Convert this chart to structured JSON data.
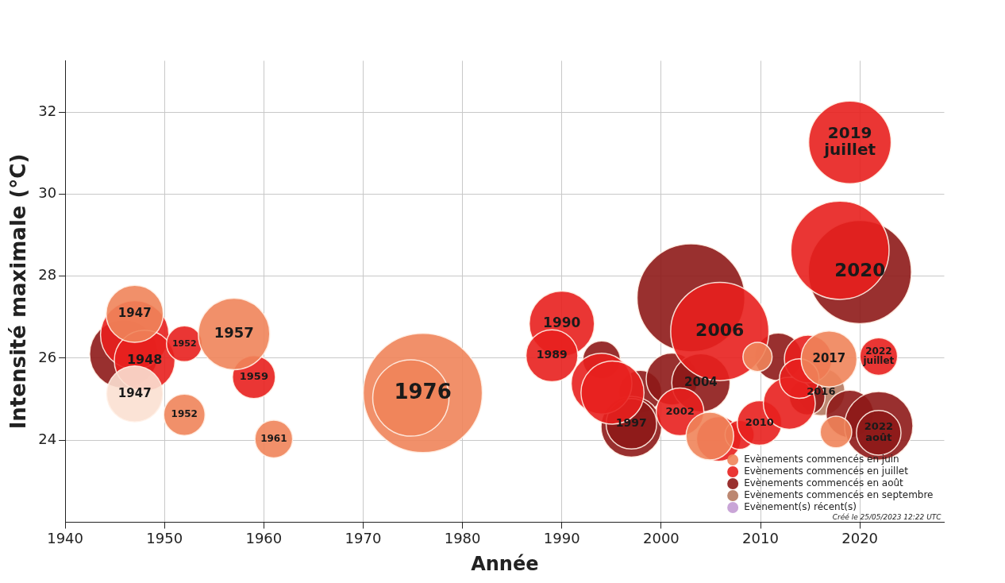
{
  "chart_data": {
    "type": "bubble",
    "xlabel": "Année",
    "ylabel": "Intensité maximale (°C)",
    "xlim": [
      1940,
      2028.5
    ],
    "xticks": [
      1940,
      1950,
      1960,
      1970,
      1980,
      1990,
      2000,
      2010,
      2020
    ],
    "ylim": [
      22,
      33.25
    ],
    "yticks": [
      24,
      26,
      28,
      30,
      32
    ],
    "grid": true,
    "legend": "bottom right",
    "annotations": [
      "Créé le 25/05/2023 12:22 UTC",
      {
        "text": "1947",
        "x": 1947,
        "y": 25.13
      },
      {
        "text": "1947",
        "x": 1947,
        "y": 27.08
      },
      {
        "text": "1957",
        "x": 1957,
        "y": 26.59
      },
      {
        "text": "1952",
        "x": 1952,
        "y": 24.62
      },
      {
        "text": "1961",
        "x": 1961,
        "y": 24.03
      },
      {
        "text": "1976",
        "x": 1976,
        "y": 25.15
      },
      {
        "text": "2017",
        "x": 2016.9,
        "y": 25.98
      },
      {
        "text": "1948",
        "x": 1948,
        "y": 25.94
      },
      {
        "text": "1952",
        "x": 1952,
        "y": 26.35
      },
      {
        "text": "1959",
        "x": 1959,
        "y": 25.54
      },
      {
        "text": "1990",
        "x": 1990,
        "y": 26.84
      },
      {
        "text": "1989",
        "x": 1989,
        "y": 26.06
      },
      {
        "text": "2002",
        "x": 2001.9,
        "y": 24.69
      },
      {
        "text": "2006",
        "x": 2005.9,
        "y": 26.65
      },
      {
        "text": "2010",
        "x": 2009.9,
        "y": 24.42
      },
      {
        "text": "2019\njuillet",
        "x": 2019,
        "y": 31.26
      },
      {
        "text": "2022\njuillet",
        "x": 2021.9,
        "y": 26.04
      },
      {
        "text": "1997",
        "x": 1997,
        "y": 24.4
      },
      {
        "text": "2004",
        "x": 2004,
        "y": 25.4
      },
      {
        "text": "2022\naoût",
        "x": 2021.9,
        "y": 24.18
      },
      {
        "text": "2020",
        "x": 2020,
        "y": 28.1
      },
      {
        "text": "2016",
        "x": 2016.1,
        "y": 25.18
      }
    ],
    "series": [
      {
        "color": "#fbe0d2",
        "x": [
          1947
        ],
        "values": [
          25.13
        ],
        "sizes": [
          0.22
        ]
      },
      {
        "name": "Evènements commencés en juin",
        "color": "#f0845a",
        "x": [
          1947,
          1957,
          1952,
          1961,
          1976,
          1974.8,
          2009.7,
          2016.9,
          2004.9,
          2017.6
        ],
        "values": [
          27.08,
          26.59,
          24.62,
          24.03,
          25.15,
          25.03,
          26.03,
          25.98,
          24.1,
          24.2
        ],
        "sizes": [
          0.23,
          0.36,
          0.12,
          0.1,
          1,
          0.41,
          0.06,
          0.22,
          0.16,
          0.07
        ]
      },
      {
        "name": "Evènements commencés en juillet",
        "color": "#e8201e",
        "x": [
          1947,
          1948,
          1952,
          1959,
          1990,
          1989,
          1994,
          1995.1,
          2001.9,
          2005.9,
          2005.8,
          2007.9,
          2009.9,
          2012.9,
          2014.8,
          2013.9,
          2018,
          2019,
          2021.9
        ],
        "values": [
          26.57,
          25.94,
          26.35,
          25.54,
          26.84,
          26.06,
          25.38,
          25.16,
          24.69,
          26.65,
          24.03,
          24.13,
          24.42,
          24.9,
          25.98,
          25.5,
          28.63,
          31.26,
          26.04
        ],
        "sizes": [
          0.33,
          0.26,
          0.09,
          0.13,
          0.3,
          0.19,
          0.26,
          0.28,
          0.16,
          0.68,
          0.14,
          0.06,
          0.14,
          0.19,
          0.16,
          0.11,
          0.68,
          0.48,
          0.1
        ]
      },
      {
        "name": "Evènements commencés en août",
        "color": "#8e1a18",
        "x": [
          1945.9,
          1994,
          1997.9,
          1997,
          1997,
          2001.1,
          2004,
          2003,
          2011.8,
          2014.7,
          2019,
          2021.9,
          2021.9,
          2020
        ],
        "values": [
          26.1,
          25.96,
          25.18,
          24.33,
          24.4,
          25.49,
          25.4,
          27.47,
          26.03,
          25.05,
          24.64,
          24.35,
          24.18,
          28.1
        ],
        "sizes": [
          0.33,
          0.1,
          0.13,
          0.26,
          0.18,
          0.19,
          0.24,
          0.82,
          0.16,
          0.09,
          0.16,
          0.33,
          0.14,
          0.75
        ]
      },
      {
        "name": "Evènements commencés en septembre",
        "color": "#b57a62",
        "x": [
          2016.1
        ],
        "values": [
          25.18
        ],
        "sizes": [
          0.16
        ]
      },
      {
        "name": "Evènement(s) récent(s)",
        "color": "#c39bd3"
      }
    ]
  }
}
